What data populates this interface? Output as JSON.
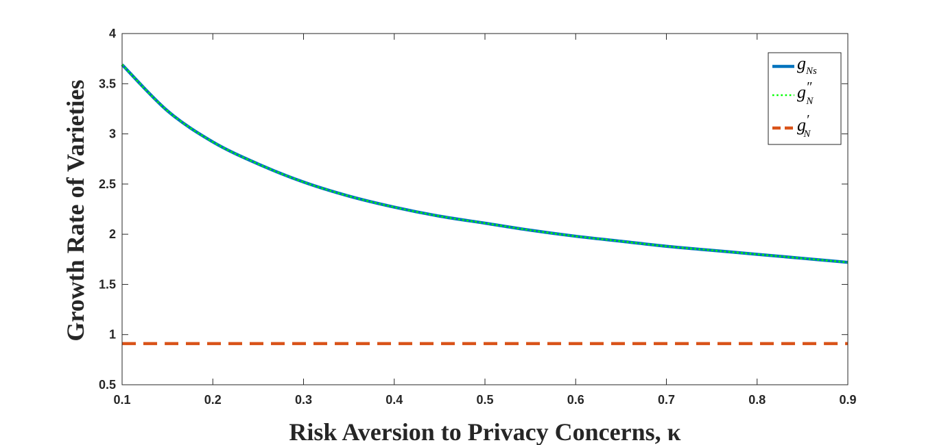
{
  "chart_data": {
    "type": "line",
    "xlabel": "Risk Aversion to Privacy Concerns, κ",
    "ylabel": "Growth Rate of Varieties",
    "xlim": [
      0.1,
      0.9
    ],
    "ylim": [
      0.5,
      4
    ],
    "x_ticks": [
      "0.1",
      "0.2",
      "0.3",
      "0.4",
      "0.5",
      "0.6",
      "0.7",
      "0.8",
      "0.9"
    ],
    "y_ticks": [
      "0.5",
      "1",
      "1.5",
      "2",
      "2.5",
      "3",
      "3.5",
      "4"
    ],
    "grid": false,
    "legend_position": "top-right",
    "x": [
      0.1,
      0.15,
      0.2,
      0.25,
      0.3,
      0.35,
      0.4,
      0.45,
      0.5,
      0.55,
      0.6,
      0.65,
      0.7,
      0.75,
      0.8,
      0.85,
      0.9
    ],
    "series": [
      {
        "name": "g_{Ns}",
        "name_main": "g",
        "name_sub": "Ns",
        "name_sup": "",
        "color": "#0072BD",
        "style": "solid",
        "values": [
          3.69,
          3.23,
          2.92,
          2.7,
          2.52,
          2.38,
          2.27,
          2.18,
          2.11,
          2.04,
          1.98,
          1.93,
          1.88,
          1.84,
          1.8,
          1.76,
          1.72
        ]
      },
      {
        "name": "g''_N",
        "name_main": "g",
        "name_sub": "N",
        "name_sup": "″",
        "color": "#00FF00",
        "style": "dotted",
        "values": [
          3.69,
          3.23,
          2.92,
          2.7,
          2.52,
          2.38,
          2.27,
          2.18,
          2.11,
          2.04,
          1.98,
          1.93,
          1.88,
          1.84,
          1.8,
          1.76,
          1.72
        ]
      },
      {
        "name": "g'_N",
        "name_main": "g",
        "name_sub": "N",
        "name_sup": "′",
        "color": "#D95319",
        "style": "dashed",
        "values": [
          0.91,
          0.91,
          0.91,
          0.91,
          0.91,
          0.91,
          0.91,
          0.91,
          0.91,
          0.91,
          0.91,
          0.91,
          0.91,
          0.91,
          0.91,
          0.91,
          0.91
        ]
      }
    ]
  }
}
